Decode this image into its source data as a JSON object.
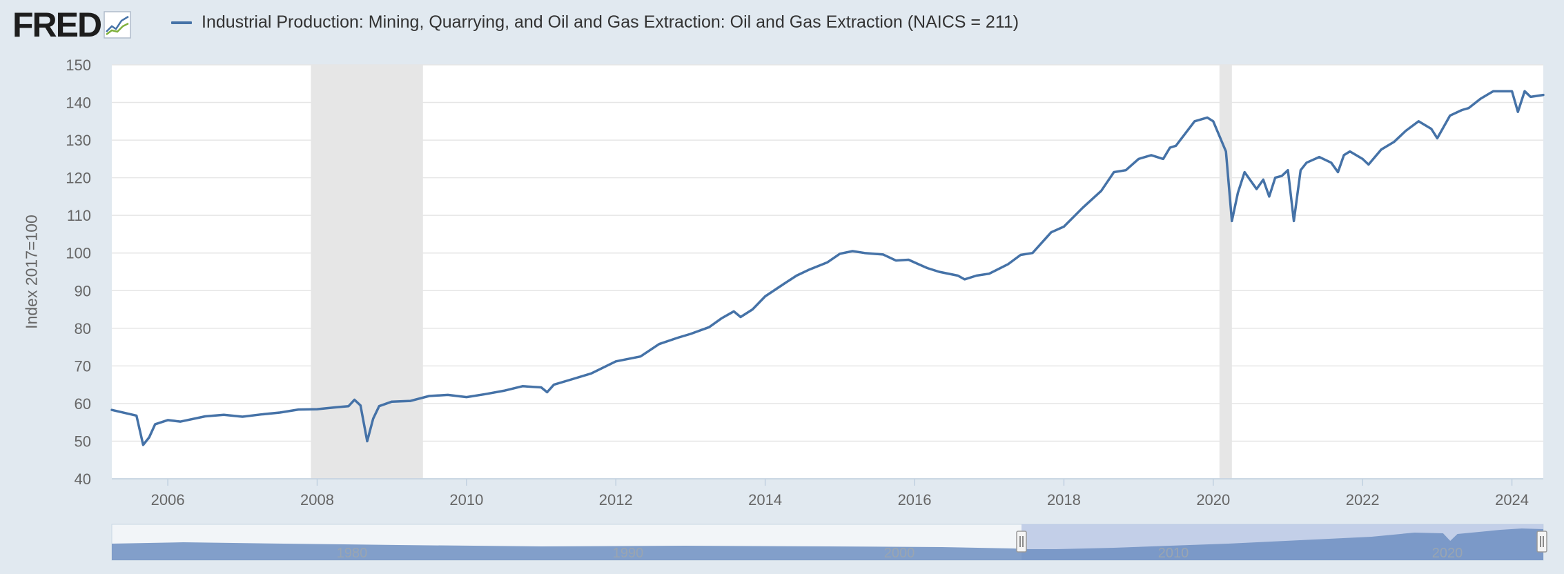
{
  "logo": {
    "text": "FRED",
    "icon": "chart-line-icon"
  },
  "chart_data": {
    "type": "line",
    "title": "",
    "legend_position": "top-left",
    "ylabel": "Index 2017=100",
    "xlabel": "",
    "ylim": [
      40,
      150
    ],
    "xlim": [
      2005.25,
      2024.42
    ],
    "grid": true,
    "y_ticks": [
      "40",
      "50",
      "60",
      "70",
      "80",
      "90",
      "100",
      "110",
      "120",
      "130",
      "140",
      "150"
    ],
    "x_ticks": [
      "2006",
      "2008",
      "2010",
      "2012",
      "2014",
      "2016",
      "2018",
      "2020",
      "2022",
      "2024"
    ],
    "recessions": [
      {
        "start": "2007-12",
        "end": "2009-06"
      },
      {
        "start": "2020-02",
        "end": "2020-04"
      }
    ],
    "series": [
      {
        "name": "Industrial Production: Mining, Quarrying, and Oil and Gas Extraction: Oil and Gas Extraction (NAICS = 211)",
        "color": "#4572a7",
        "x": [
          2005.25,
          2005.58,
          2005.67,
          2005.75,
          2005.83,
          2006.0,
          2006.17,
          2006.5,
          2006.75,
          2007.0,
          2007.25,
          2007.5,
          2007.75,
          2008.0,
          2008.25,
          2008.42,
          2008.5,
          2008.58,
          2008.67,
          2008.75,
          2008.83,
          2009.0,
          2009.25,
          2009.5,
          2009.75,
          2010.0,
          2010.25,
          2010.5,
          2010.75,
          2011.0,
          2011.08,
          2011.17,
          2011.42,
          2011.67,
          2012.0,
          2012.33,
          2012.58,
          2012.83,
          2013.0,
          2013.25,
          2013.42,
          2013.58,
          2013.67,
          2013.83,
          2014.0,
          2014.25,
          2014.42,
          2014.58,
          2014.83,
          2015.0,
          2015.17,
          2015.33,
          2015.58,
          2015.75,
          2015.92,
          2016.0,
          2016.17,
          2016.33,
          2016.58,
          2016.67,
          2016.83,
          2017.0,
          2017.25,
          2017.42,
          2017.58,
          2017.83,
          2018.0,
          2018.25,
          2018.5,
          2018.67,
          2018.83,
          2019.0,
          2019.17,
          2019.33,
          2019.42,
          2019.5,
          2019.75,
          2019.92,
          2020.0,
          2020.17,
          2020.25,
          2020.33,
          2020.42,
          2020.58,
          2020.67,
          2020.75,
          2020.83,
          2020.92,
          2021.0,
          2021.08,
          2021.17,
          2021.25,
          2021.42,
          2021.58,
          2021.67,
          2021.75,
          2021.83,
          2022.0,
          2022.08,
          2022.25,
          2022.42,
          2022.58,
          2022.75,
          2022.92,
          2023.0,
          2023.17,
          2023.33,
          2023.42,
          2023.58,
          2023.75,
          2023.92,
          2024.0,
          2024.08,
          2024.17,
          2024.25,
          2024.42
        ],
        "values": [
          58.3,
          56.8,
          49.0,
          51.0,
          54.5,
          55.6,
          55.2,
          56.6,
          57.0,
          56.5,
          57.1,
          57.6,
          58.4,
          58.5,
          59.0,
          59.3,
          61.0,
          59.5,
          50.0,
          56.0,
          59.3,
          60.5,
          60.7,
          62.0,
          62.3,
          61.7,
          62.5,
          63.4,
          64.6,
          64.3,
          63.0,
          65.0,
          66.5,
          68.0,
          71.2,
          72.5,
          75.8,
          77.5,
          78.5,
          80.3,
          82.7,
          84.5,
          83.0,
          85.0,
          88.5,
          91.8,
          94.0,
          95.5,
          97.5,
          99.8,
          100.5,
          100.0,
          99.6,
          98.0,
          98.2,
          97.5,
          96.0,
          95.0,
          94.0,
          93.0,
          94.0,
          94.5,
          97.0,
          99.5,
          100.0,
          105.5,
          107.0,
          112.0,
          116.5,
          121.5,
          122.0,
          125.0,
          126.0,
          125.0,
          128.0,
          128.5,
          135.0,
          136.0,
          135.0,
          127.0,
          108.5,
          116.0,
          121.5,
          117.0,
          119.5,
          115.0,
          120.0,
          120.5,
          122.0,
          108.5,
          122.0,
          124.0,
          125.5,
          124.0,
          121.5,
          126.0,
          127.0,
          125.0,
          123.5,
          127.5,
          129.5,
          132.5,
          135.0,
          133.0,
          130.5,
          136.5,
          138.0,
          138.5,
          141.0,
          143.0,
          143.0,
          143.0,
          137.5,
          143.0,
          141.5,
          142.0
        ]
      }
    ]
  },
  "navigator": {
    "labels": [
      "1980",
      "1990",
      "2000",
      "2010",
      "2020"
    ],
    "handle_icons": [
      "drag-handle-icon",
      "drag-handle-icon"
    ]
  },
  "colors": {
    "page_bg": "#e1e9f0",
    "plot_bg": "#ffffff",
    "series": "#4572a7",
    "recession": "#e6e6e6",
    "grid": "#e6e6e6",
    "axis_text": "#666666"
  }
}
